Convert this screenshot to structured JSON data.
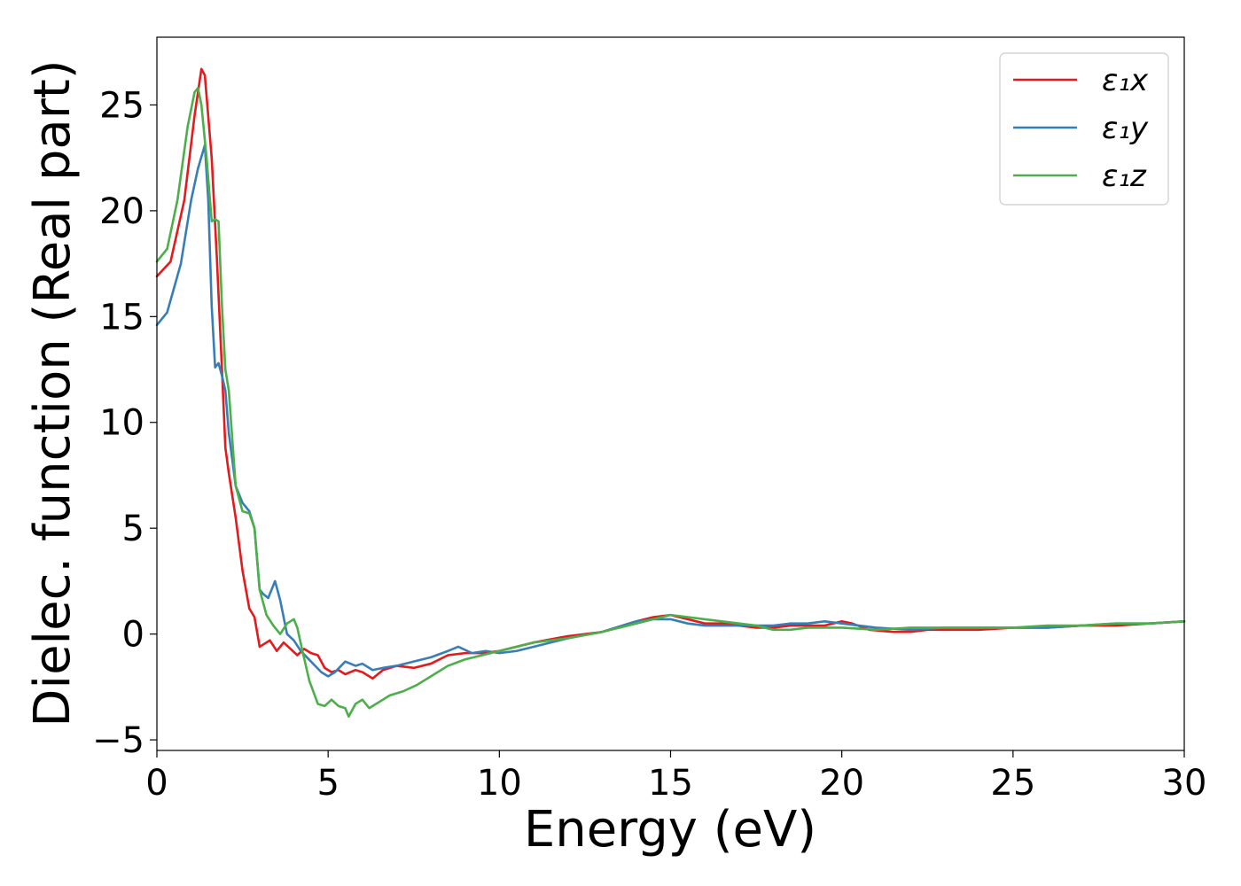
{
  "chart_data": {
    "type": "line",
    "title": "",
    "xlabel": "Energy (eV)",
    "ylabel": "Dielec. function (Real part)",
    "xlim": [
      0,
      30
    ],
    "ylim": [
      -5.5,
      28.2
    ],
    "xticks": [
      0,
      5,
      10,
      15,
      20,
      25,
      30
    ],
    "yticks": [
      -5,
      0,
      5,
      10,
      15,
      20,
      25
    ],
    "xtick_labels": [
      "0",
      "5",
      "10",
      "15",
      "20",
      "25",
      "30"
    ],
    "ytick_labels": [
      "−5",
      "0",
      "5",
      "10",
      "15",
      "20",
      "25"
    ],
    "grid": false,
    "legend_position": "top-right",
    "series": [
      {
        "name": "ε1x",
        "color": "#e41a1c",
        "x": [
          0,
          0.4,
          0.8,
          1.1,
          1.3,
          1.4,
          1.6,
          1.75,
          1.9,
          2.0,
          2.1,
          2.3,
          2.5,
          2.7,
          2.85,
          3.0,
          3.1,
          3.3,
          3.5,
          3.7,
          3.9,
          4.1,
          4.3,
          4.5,
          4.7,
          4.9,
          5.1,
          5.3,
          5.5,
          5.8,
          6.0,
          6.3,
          6.6,
          7.0,
          7.5,
          8.0,
          8.5,
          9.0,
          9.5,
          10.0,
          11.0,
          12.0,
          13.0,
          14.0,
          14.5,
          15.0,
          15.5,
          16.0,
          16.5,
          17.0,
          17.5,
          18.0,
          18.5,
          19.0,
          19.5,
          20.0,
          20.3,
          20.8,
          21.5,
          22.0,
          22.5,
          23.0,
          24.0,
          25.0,
          26.0,
          27.0,
          28.0,
          29.0,
          30.0
        ],
        "values": [
          16.9,
          17.6,
          20.5,
          24.5,
          26.7,
          26.4,
          22.5,
          17.8,
          12.5,
          8.8,
          7.6,
          5.5,
          3.0,
          1.2,
          0.8,
          -0.6,
          -0.5,
          -0.3,
          -0.8,
          -0.4,
          -0.7,
          -1.0,
          -0.7,
          -0.9,
          -1.0,
          -1.6,
          -1.8,
          -1.7,
          -1.9,
          -1.7,
          -1.8,
          -2.1,
          -1.7,
          -1.5,
          -1.6,
          -1.4,
          -1.0,
          -0.9,
          -0.9,
          -0.8,
          -0.4,
          -0.1,
          0.1,
          0.6,
          0.8,
          0.9,
          0.7,
          0.5,
          0.5,
          0.4,
          0.3,
          0.3,
          0.4,
          0.4,
          0.4,
          0.6,
          0.5,
          0.2,
          0.1,
          0.1,
          0.2,
          0.2,
          0.2,
          0.3,
          0.3,
          0.4,
          0.4,
          0.5,
          0.6
        ]
      },
      {
        "name": "ε1y",
        "color": "#377eb8",
        "x": [
          0,
          0.3,
          0.7,
          1.0,
          1.2,
          1.4,
          1.5,
          1.6,
          1.7,
          1.8,
          1.9,
          2.0,
          2.1,
          2.3,
          2.5,
          2.7,
          2.85,
          3.0,
          3.1,
          3.25,
          3.45,
          3.6,
          3.8,
          4.0,
          4.2,
          4.5,
          4.8,
          5.0,
          5.2,
          5.5,
          5.8,
          6.0,
          6.3,
          6.6,
          7.0,
          7.5,
          8.0,
          8.5,
          8.8,
          9.2,
          9.6,
          10.0,
          10.5,
          11.0,
          12.0,
          13.0,
          14.0,
          14.5,
          15.0,
          15.5,
          16.0,
          16.5,
          17.0,
          17.5,
          18.0,
          18.5,
          19.0,
          19.5,
          20.0,
          20.5,
          21.0,
          22.0,
          23.0,
          24.0,
          25.0,
          26.0,
          27.0,
          28.0,
          29.0,
          30.0
        ],
        "values": [
          14.6,
          15.2,
          17.5,
          20.5,
          22.0,
          23.1,
          20.5,
          15.5,
          12.6,
          12.8,
          12.2,
          11.5,
          9.5,
          7.0,
          6.2,
          5.8,
          5.0,
          2.1,
          1.9,
          1.7,
          2.5,
          1.6,
          0.0,
          -0.3,
          -0.8,
          -1.3,
          -1.8,
          -2.0,
          -1.8,
          -1.3,
          -1.5,
          -1.4,
          -1.7,
          -1.6,
          -1.5,
          -1.3,
          -1.1,
          -0.8,
          -0.6,
          -0.9,
          -0.8,
          -0.9,
          -0.8,
          -0.6,
          -0.2,
          0.1,
          0.6,
          0.7,
          0.7,
          0.5,
          0.4,
          0.4,
          0.4,
          0.4,
          0.4,
          0.5,
          0.5,
          0.6,
          0.5,
          0.4,
          0.3,
          0.2,
          0.3,
          0.3,
          0.3,
          0.3,
          0.4,
          0.5,
          0.5,
          0.6
        ]
      },
      {
        "name": "ε1z",
        "color": "#4daf4a",
        "x": [
          0,
          0.3,
          0.6,
          0.9,
          1.1,
          1.2,
          1.3,
          1.45,
          1.6,
          1.7,
          1.8,
          1.9,
          2.0,
          2.1,
          2.3,
          2.5,
          2.7,
          2.85,
          3.0,
          3.2,
          3.4,
          3.6,
          3.8,
          4.0,
          4.1,
          4.25,
          4.45,
          4.7,
          4.9,
          5.1,
          5.3,
          5.5,
          5.6,
          5.8,
          6.0,
          6.2,
          6.5,
          6.8,
          7.2,
          7.6,
          8.0,
          8.5,
          9.0,
          9.5,
          10.0,
          11.0,
          12.0,
          13.0,
          14.0,
          14.5,
          15.0,
          15.5,
          16.0,
          16.5,
          17.0,
          17.5,
          18.0,
          18.5,
          19.0,
          19.5,
          20.0,
          21.0,
          22.0,
          23.0,
          24.0,
          25.0,
          26.0,
          27.0,
          28.0,
          29.0,
          30.0
        ],
        "values": [
          17.6,
          18.2,
          20.5,
          24.0,
          25.6,
          25.8,
          25.0,
          22.5,
          19.5,
          19.6,
          19.5,
          15.5,
          12.5,
          11.5,
          7.0,
          5.8,
          5.7,
          5.0,
          2.1,
          0.9,
          0.4,
          0.0,
          0.5,
          0.7,
          0.3,
          -0.8,
          -2.2,
          -3.3,
          -3.4,
          -3.1,
          -3.4,
          -3.5,
          -3.9,
          -3.3,
          -3.1,
          -3.5,
          -3.2,
          -2.9,
          -2.7,
          -2.4,
          -2.0,
          -1.5,
          -1.2,
          -1.0,
          -0.8,
          -0.4,
          -0.2,
          0.1,
          0.5,
          0.7,
          0.9,
          0.8,
          0.7,
          0.6,
          0.5,
          0.4,
          0.2,
          0.2,
          0.3,
          0.3,
          0.3,
          0.2,
          0.3,
          0.3,
          0.3,
          0.3,
          0.4,
          0.4,
          0.5,
          0.5,
          0.6
        ]
      }
    ],
    "legend": [
      {
        "label": "ε₁x",
        "color": "#e41a1c"
      },
      {
        "label": "ε₁y",
        "color": "#377eb8"
      },
      {
        "label": "ε₁z",
        "color": "#4daf4a"
      }
    ]
  }
}
